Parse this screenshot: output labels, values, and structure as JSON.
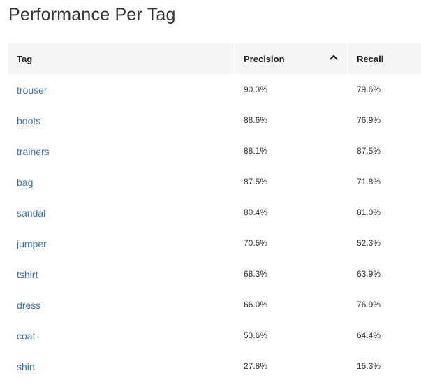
{
  "title": "Performance Per Tag",
  "table": {
    "headers": {
      "tag": "Tag",
      "precision": "Precision",
      "recall": "Recall"
    },
    "sort": {
      "column": "precision",
      "direction": "desc",
      "icon": "chevron-up-icon"
    },
    "rows": [
      {
        "tag": "trouser",
        "precision": "90.3%",
        "recall": "79.6%"
      },
      {
        "tag": "boots",
        "precision": "88.6%",
        "recall": "76.9%"
      },
      {
        "tag": "trainers",
        "precision": "88.1%",
        "recall": "87.5%"
      },
      {
        "tag": "bag",
        "precision": "87.5%",
        "recall": "71.8%"
      },
      {
        "tag": "sandal",
        "precision": "80.4%",
        "recall": "81.0%"
      },
      {
        "tag": "jumper",
        "precision": "70.5%",
        "recall": "52.3%"
      },
      {
        "tag": "tshirt",
        "precision": "68.3%",
        "recall": "63.9%"
      },
      {
        "tag": "dress",
        "precision": "66.0%",
        "recall": "76.9%"
      },
      {
        "tag": "coat",
        "precision": "53.6%",
        "recall": "64.4%"
      },
      {
        "tag": "shirt",
        "precision": "27.8%",
        "recall": "15.3%"
      }
    ]
  },
  "colors": {
    "link": "#3b73af",
    "header_bg": "#f5f5f5"
  }
}
